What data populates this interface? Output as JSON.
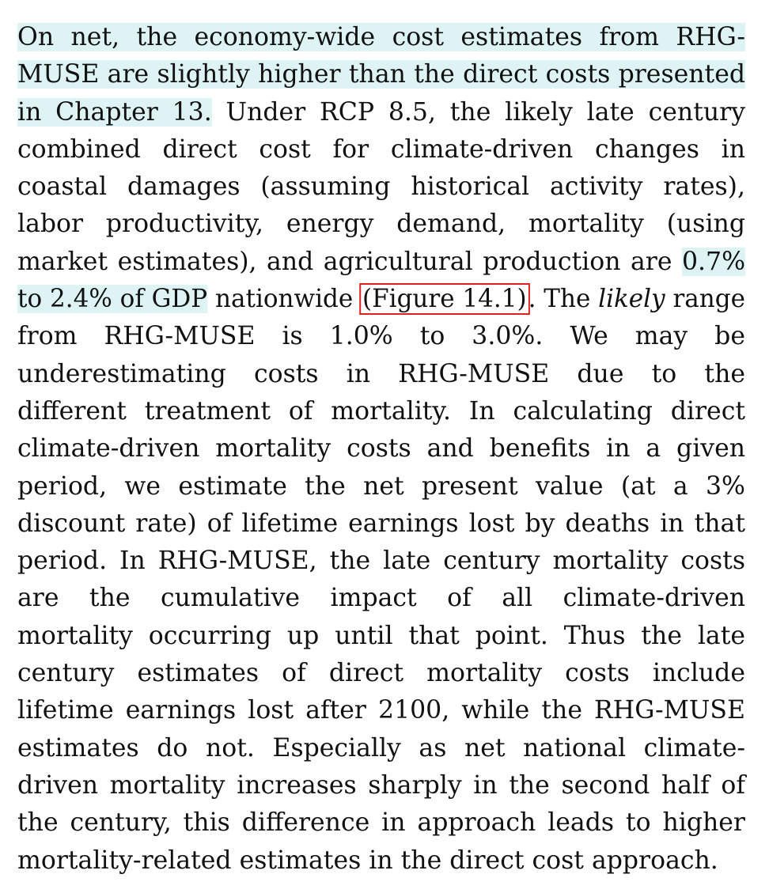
{
  "paragraph": {
    "line_01": "On net, the economy-wide cost estimates from RHG-",
    "line_02": "MUSE are slightly higher than the direct costs presented",
    "line_03_hl": "in Chapter 13.",
    "line_03_rest": " Under RCP 8.5, the likely late century",
    "line_04": "combined direct cost for climate-driven changes in",
    "line_05": "coastal damages (assuming historical activity rates),",
    "line_06": "labor productivity, energy demand, mortality (using",
    "line_07_pre": "market estimates), and agricultural production are ",
    "line_07_hl": "0.7%",
    "line_08_hl": "to 2.4% of GDP",
    "line_08_mid": " nationwide ",
    "line_08_ref": "(Figure 14.1)",
    "line_08_post": ". The ",
    "line_08_em": "likely",
    "line_08_end": " range",
    "line_09": "from RHG-MUSE is 1.0% to 3.0%. We may be",
    "line_10": "underestimating costs in RHG-MUSE due to the",
    "line_11": "different treatment of mortality. In calculating direct",
    "line_12": "climate-driven mortality costs and benefits in a given",
    "line_13": "period, we estimate the net present value (at a 3%",
    "line_14": "discount rate) of lifetime earnings lost by deaths in that",
    "line_15": "period. In RHG-MUSE, the late century mortality costs",
    "line_16": "are the cumulative impact of all climate-driven",
    "line_17": "mortality occurring up until that point. Thus the late",
    "line_18": "century estimates of direct mortality costs include",
    "line_19": "lifetime earnings lost after 2100, while the RHG-MUSE",
    "line_20": "estimates do not. Especially as net national climate-",
    "line_21": "driven mortality increases sharply in the second half of",
    "line_22": "the century, this difference in approach leads to higher",
    "line_23": "mortality-related estimates in the direct cost approach."
  },
  "colors": {
    "highlight": "#def4f4",
    "reference_box": "#e02020",
    "text": "#111111"
  }
}
